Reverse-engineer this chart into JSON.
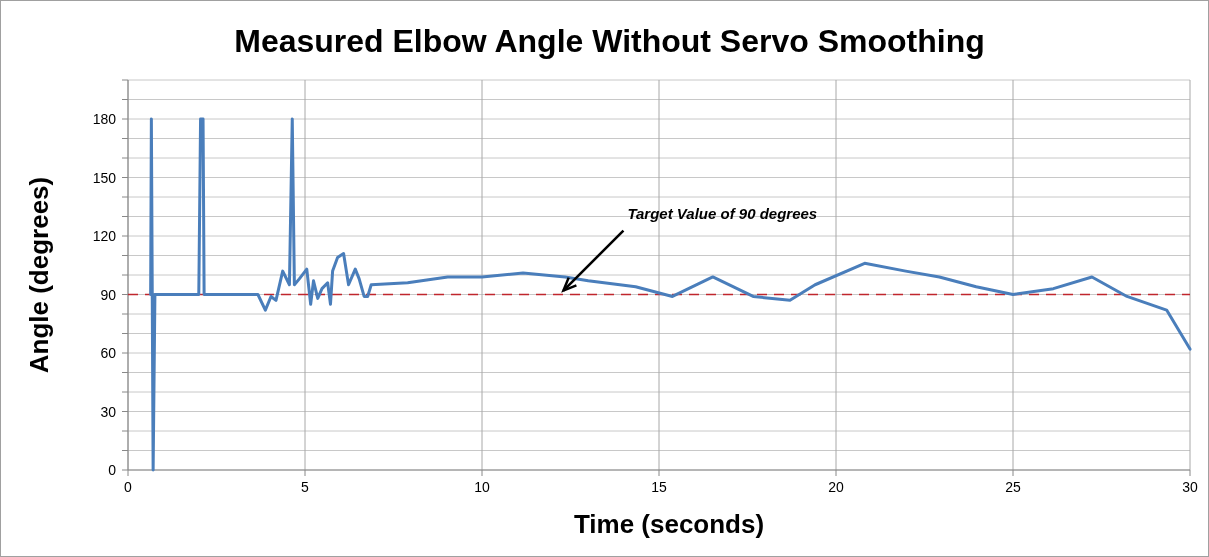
{
  "chart_data": {
    "type": "line",
    "title": "Measured Elbow Angle Without Servo Smoothing",
    "xlabel": "Time (seconds)",
    "ylabel": "Angle (degrees)",
    "x": [
      0.64,
      0.66,
      0.71,
      0.76,
      2.0,
      2.05,
      2.12,
      2.15,
      3.67,
      3.88,
      4.04,
      4.18,
      4.37,
      4.56,
      4.64,
      4.7,
      4.84,
      5.05,
      5.16,
      5.24,
      5.36,
      5.48,
      5.64,
      5.72,
      5.78,
      5.92,
      6.09,
      6.23,
      6.42,
      6.53,
      6.67,
      6.77,
      6.87,
      7.9,
      9.03,
      10.0,
      11.16,
      12.35,
      13.0,
      14.34,
      15.38,
      16.52,
      17.66,
      18.7,
      19.41,
      20.81,
      21.97,
      22.92,
      23.96,
      25.0,
      26.14,
      27.23,
      28.22,
      29.34,
      30.0
    ],
    "series": [
      {
        "color": "#4a7ebb",
        "values": [
          90,
          180,
          0,
          90,
          90,
          180,
          180,
          90,
          90,
          82,
          89,
          87,
          102,
          95,
          180,
          95,
          98,
          103,
          85,
          97,
          88,
          93,
          96,
          85,
          102,
          109,
          111,
          95,
          103,
          98,
          89,
          89,
          95,
          96,
          99,
          99,
          101,
          99,
          97,
          94,
          89,
          99,
          89,
          87,
          95,
          106,
          102,
          99,
          94,
          90,
          93,
          99,
          89,
          82,
          62
        ]
      }
    ],
    "xlim": [
      0,
      30
    ],
    "xticks": [
      0,
      5,
      10,
      15,
      20,
      25,
      30
    ],
    "ylim": [
      0,
      200
    ],
    "yticks": [
      0,
      {
        "value": 10,
        "label": null
      },
      {
        "value": 20,
        "label": null
      },
      30,
      {
        "value": 40,
        "label": null
      },
      {
        "value": 50,
        "label": null
      },
      60,
      {
        "value": 70,
        "label": null
      },
      {
        "value": 80,
        "label": null
      },
      90,
      {
        "value": 100,
        "label": null
      },
      {
        "value": 110,
        "label": null
      },
      120,
      {
        "value": 130,
        "label": null
      },
      {
        "value": 140,
        "label": null
      },
      150,
      {
        "value": 160,
        "label": null
      },
      {
        "value": 170,
        "label": null
      },
      180,
      {
        "value": 190,
        "label": null
      },
      {
        "value": 200,
        "label": null
      }
    ],
    "grid": true,
    "line_style": "solid",
    "marker": "none",
    "ref_lines": [
      {
        "axis": "y",
        "value": 90,
        "color": "#c0262d",
        "line_style": "dashed"
      }
    ],
    "annotations": [
      {
        "text": "Target Value of 90 degrees",
        "x": 12.3,
        "y": 92
      }
    ]
  }
}
